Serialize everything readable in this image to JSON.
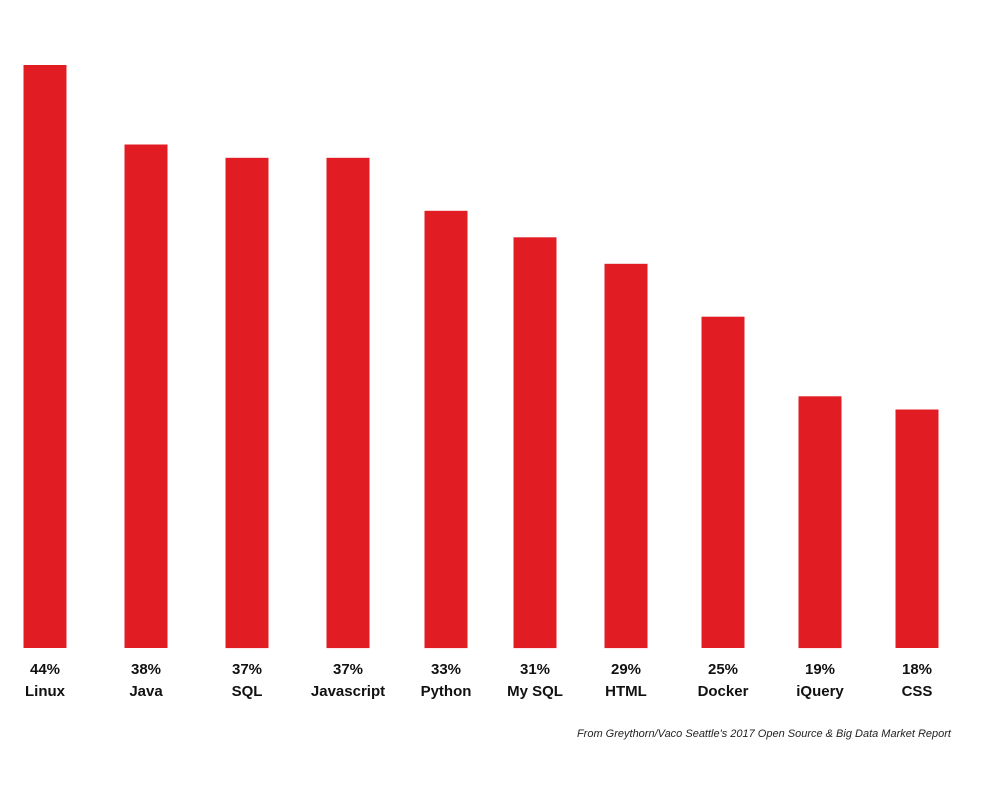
{
  "chart_data": {
    "type": "bar",
    "categories": [
      "Linux",
      "Java",
      "SQL",
      "Javascript",
      "Python",
      "My SQL",
      "HTML",
      "Docker",
      "iQuery",
      "CSS"
    ],
    "values": [
      44,
      38,
      37,
      37,
      33,
      31,
      29,
      25,
      19,
      18
    ],
    "value_labels": [
      "44%",
      "38%",
      "37%",
      "37%",
      "33%",
      "31%",
      "29%",
      "25%",
      "19%",
      "18%"
    ],
    "bar_color": "#e21c23",
    "grid": false,
    "legend": "none"
  },
  "footer": {
    "source": "From Greythorn/Vaco Seattle's 2017 Open Source & Big Data Market Report"
  }
}
